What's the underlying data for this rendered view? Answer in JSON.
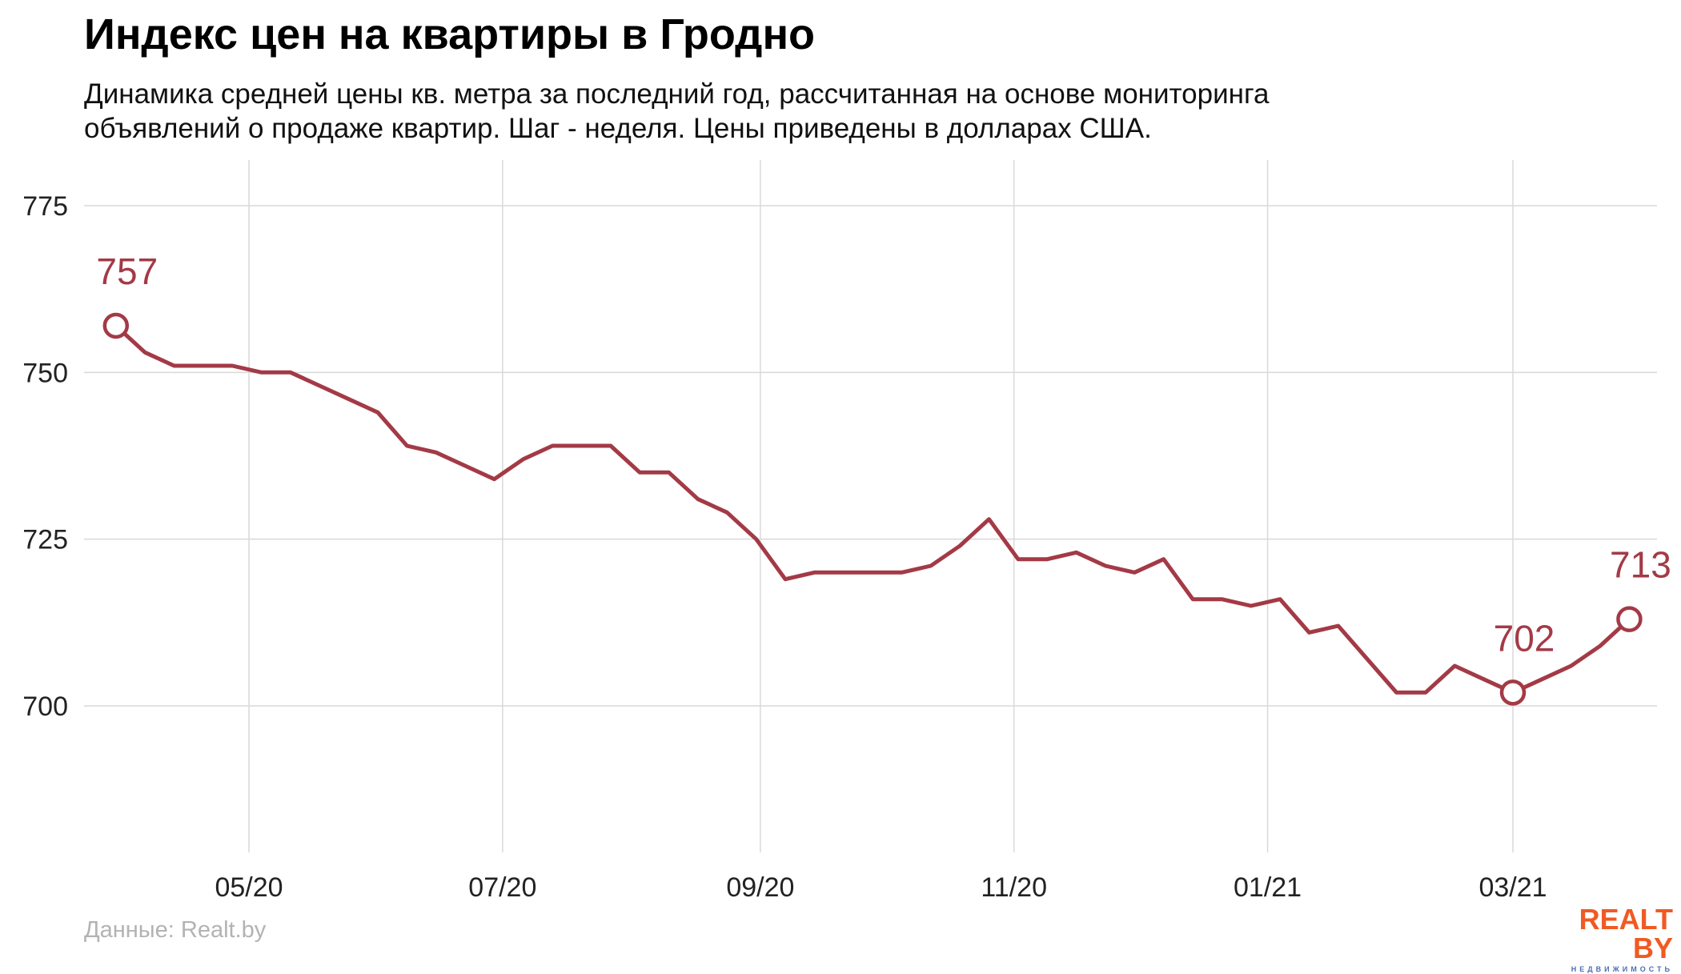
{
  "header": {
    "title": "Индекс цен на квартиры в Гродно",
    "subtitle_line1": "Динамика средней цены кв. метра за последний год, рассчитанная на основе мониторинга",
    "subtitle_line2": "объявлений о продаже квартир. Шаг - неделя. Цены приведены в долларах США."
  },
  "footer": {
    "source": "Данные: Realt.by",
    "logo_main": "REALT BY",
    "logo_sub": "НЕДВИЖИМОСТЬ"
  },
  "colors": {
    "line": "#a33a46",
    "grid": "#d9d9d9",
    "axis_text": "#222222",
    "source_text": "#b3b3b3",
    "logo_orange": "#f05a22",
    "logo_blue": "#4a6fb5"
  },
  "chart_data": {
    "type": "line",
    "title": "Индекс цен на квартиры в Гродно",
    "xlabel": "",
    "ylabel": "",
    "grid": true,
    "legend": "none",
    "ylim": [
      680,
      782
    ],
    "yticks": [
      700,
      725,
      750,
      775
    ],
    "xticks": [
      {
        "label": "05/20",
        "date": "2020-05-01"
      },
      {
        "label": "07/20",
        "date": "2020-07-01"
      },
      {
        "label": "09/20",
        "date": "2020-09-01"
      },
      {
        "label": "11/20",
        "date": "2020-11-01"
      },
      {
        "label": "01/21",
        "date": "2021-01-01"
      },
      {
        "label": "03/21",
        "date": "2021-03-01"
      }
    ],
    "x": [
      "2020-03-30",
      "2020-04-06",
      "2020-04-13",
      "2020-04-20",
      "2020-04-27",
      "2020-05-04",
      "2020-05-11",
      "2020-05-18",
      "2020-05-25",
      "2020-06-01",
      "2020-06-08",
      "2020-06-15",
      "2020-06-22",
      "2020-06-29",
      "2020-07-06",
      "2020-07-13",
      "2020-07-20",
      "2020-07-27",
      "2020-08-03",
      "2020-08-10",
      "2020-08-17",
      "2020-08-24",
      "2020-08-31",
      "2020-09-07",
      "2020-09-14",
      "2020-09-21",
      "2020-09-28",
      "2020-10-05",
      "2020-10-12",
      "2020-10-19",
      "2020-10-26",
      "2020-11-02",
      "2020-11-09",
      "2020-11-16",
      "2020-11-23",
      "2020-11-30",
      "2020-12-07",
      "2020-12-14",
      "2020-12-21",
      "2020-12-28",
      "2021-01-04",
      "2021-01-11",
      "2021-01-18",
      "2021-01-25",
      "2021-02-01",
      "2021-02-08",
      "2021-02-15",
      "2021-02-22",
      "2021-03-01",
      "2021-03-08",
      "2021-03-15",
      "2021-03-22",
      "2021-03-29"
    ],
    "series": [
      {
        "values": [
          757,
          753,
          751,
          751,
          751,
          750,
          750,
          748,
          746,
          744,
          739,
          738,
          736,
          734,
          737,
          739,
          739,
          739,
          735,
          735,
          731,
          729,
          725,
          719,
          720,
          720,
          720,
          720,
          721,
          724,
          728,
          722,
          722,
          723,
          721,
          720,
          722,
          716,
          716,
          715,
          716,
          711,
          712,
          707,
          702,
          702,
          706,
          704,
          702,
          704,
          706,
          709,
          713
        ]
      }
    ],
    "annotations": [
      {
        "label": "757",
        "x": "2020-03-30",
        "y": 757
      },
      {
        "label": "702",
        "x": "2021-03-01",
        "y": 702
      },
      {
        "label": "713",
        "x": "2021-03-29",
        "y": 713
      }
    ]
  }
}
